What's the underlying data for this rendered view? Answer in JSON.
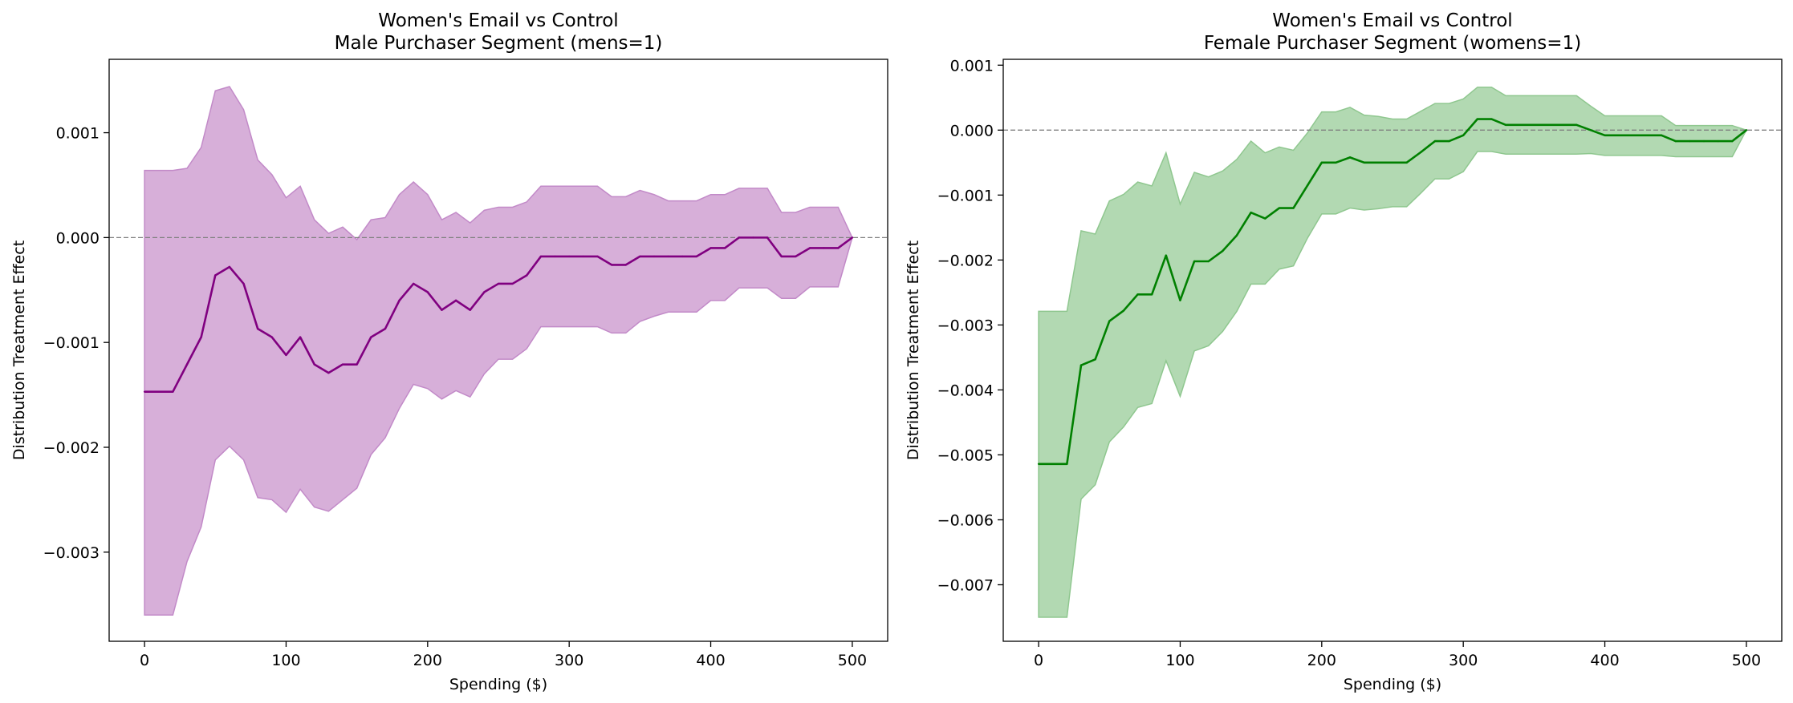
{
  "chart_data": [
    {
      "type": "line",
      "title": "Women's Email vs Control",
      "subtitle": "Male Purchaser Segment (mens=1)",
      "xlabel": "Spending ($)",
      "ylabel": "Distribution Treatment Effect",
      "xlim": [
        -25,
        525
      ],
      "ylim": [
        -0.00385,
        0.0017
      ],
      "xticks": [
        0,
        100,
        200,
        300,
        400,
        500
      ],
      "xtick_labels": [
        "0",
        "100",
        "200",
        "300",
        "400",
        "500"
      ],
      "yticks": [
        -0.003,
        -0.002,
        -0.001,
        0.0,
        0.001
      ],
      "ytick_labels": [
        "−0.003",
        "−0.002",
        "−0.001",
        "0.000",
        "0.001"
      ],
      "zero_line": true,
      "grid": false,
      "line_color": "#800080",
      "band_color": "#d7afd9",
      "band_edge_color": "#c28ac8",
      "x": [
        0,
        10,
        20,
        30,
        40,
        50,
        60,
        70,
        80,
        90,
        100,
        110,
        120,
        130,
        140,
        150,
        160,
        170,
        180,
        190,
        200,
        210,
        220,
        230,
        240,
        250,
        260,
        270,
        280,
        290,
        300,
        310,
        320,
        330,
        340,
        350,
        360,
        370,
        380,
        390,
        400,
        410,
        420,
        430,
        440,
        450,
        460,
        470,
        480,
        490,
        500
      ],
      "series": [
        {
          "values": [
            -0.00147,
            -0.00147,
            -0.00147,
            -0.00121,
            -0.00095,
            -0.00036,
            -0.00028,
            -0.00044,
            -0.00087,
            -0.00095,
            -0.00112,
            -0.00095,
            -0.00121,
            -0.00129,
            -0.00121,
            -0.00121,
            -0.00095,
            -0.00087,
            -0.0006,
            -0.00044,
            -0.00052,
            -0.00069,
            -0.0006,
            -0.00069,
            -0.00052,
            -0.00044,
            -0.00044,
            -0.00036,
            -0.00018,
            -0.00018,
            -0.00018,
            -0.00018,
            -0.00018,
            -0.00026,
            -0.00026,
            -0.00018,
            -0.00018,
            -0.00018,
            -0.00018,
            -0.00018,
            -0.0001,
            -0.0001,
            0.0,
            0.0,
            0.0,
            -0.00018,
            -0.00018,
            -0.0001,
            -0.0001,
            -0.0001,
            0.0
          ],
          "lower": [
            -0.0036,
            -0.0036,
            -0.0036,
            -0.00309,
            -0.00276,
            -0.00212,
            -0.00199,
            -0.00212,
            -0.00248,
            -0.0025,
            -0.00262,
            -0.0024,
            -0.00257,
            -0.00261,
            -0.0025,
            -0.00239,
            -0.00207,
            -0.00191,
            -0.00163,
            -0.0014,
            -0.00144,
            -0.00154,
            -0.00146,
            -0.00152,
            -0.0013,
            -0.00116,
            -0.00116,
            -0.00106,
            -0.00085,
            -0.00085,
            -0.00085,
            -0.00085,
            -0.00085,
            -0.00091,
            -0.00091,
            -0.0008,
            -0.00075,
            -0.00071,
            -0.00071,
            -0.00071,
            -0.0006,
            -0.0006,
            -0.00048,
            -0.00048,
            -0.00048,
            -0.00058,
            -0.00058,
            -0.00047,
            -0.00047,
            -0.00047,
            0.0
          ],
          "upper": [
            0.00064,
            0.00064,
            0.00064,
            0.00066,
            0.00086,
            0.0014,
            0.00144,
            0.00122,
            0.00074,
            0.0006,
            0.00038,
            0.00049,
            0.00017,
            4e-05,
            0.0001,
            -2e-05,
            0.00017,
            0.00019,
            0.00041,
            0.00053,
            0.00041,
            0.00017,
            0.00024,
            0.00014,
            0.00026,
            0.00029,
            0.00029,
            0.00034,
            0.00049,
            0.00049,
            0.00049,
            0.00049,
            0.00049,
            0.00039,
            0.00039,
            0.00045,
            0.00041,
            0.00035,
            0.00035,
            0.00035,
            0.00041,
            0.00041,
            0.00047,
            0.00047,
            0.00047,
            0.00024,
            0.00024,
            0.00029,
            0.00029,
            0.00029,
            0.0
          ]
        }
      ]
    },
    {
      "type": "line",
      "title": "Women's Email vs Control",
      "subtitle": "Female Purchaser Segment (womens=1)",
      "xlabel": "Spending ($)",
      "ylabel": "Distribution Treatment Effect",
      "xlim": [
        -25,
        525
      ],
      "ylim": [
        -0.00787,
        0.00109
      ],
      "xticks": [
        0,
        100,
        200,
        300,
        400,
        500
      ],
      "xtick_labels": [
        "0",
        "100",
        "200",
        "300",
        "400",
        "500"
      ],
      "yticks": [
        -0.007,
        -0.006,
        -0.005,
        -0.004,
        -0.003,
        -0.002,
        -0.001,
        0.0,
        0.001
      ],
      "ytick_labels": [
        "−0.007",
        "−0.006",
        "−0.005",
        "−0.004",
        "−0.003",
        "−0.002",
        "−0.001",
        "0.000",
        "0.001"
      ],
      "zero_line": true,
      "grid": false,
      "line_color": "#008000",
      "band_color": "#b2d9b2",
      "band_edge_color": "#8fc78f",
      "x": [
        0,
        10,
        20,
        30,
        40,
        50,
        60,
        70,
        80,
        90,
        100,
        110,
        120,
        130,
        140,
        150,
        160,
        170,
        180,
        190,
        200,
        210,
        220,
        230,
        240,
        250,
        260,
        270,
        280,
        290,
        300,
        310,
        320,
        330,
        340,
        350,
        360,
        370,
        380,
        390,
        400,
        410,
        420,
        430,
        440,
        450,
        460,
        470,
        480,
        490,
        500
      ],
      "series": [
        {
          "values": [
            -0.00514,
            -0.00514,
            -0.00514,
            -0.00362,
            -0.00353,
            -0.00294,
            -0.00278,
            -0.00253,
            -0.00253,
            -0.00193,
            -0.00262,
            -0.00202,
            -0.00202,
            -0.00186,
            -0.00162,
            -0.00127,
            -0.00136,
            -0.0012,
            -0.0012,
            -0.00085,
            -0.0005,
            -0.0005,
            -0.00042,
            -0.0005,
            -0.0005,
            -0.0005,
            -0.0005,
            -0.00034,
            -0.00017,
            -0.00017,
            -8e-05,
            0.00017,
            0.00017,
            8e-05,
            8e-05,
            8e-05,
            8e-05,
            8e-05,
            8e-05,
            0.0,
            -8e-05,
            -8e-05,
            -8e-05,
            -8e-05,
            -8e-05,
            -0.00017,
            -0.00017,
            -0.00017,
            -0.00017,
            -0.00017,
            0.0
          ],
          "lower": [
            -0.0075,
            -0.0075,
            -0.0075,
            -0.00568,
            -0.00546,
            -0.0048,
            -0.00457,
            -0.00427,
            -0.00421,
            -0.00355,
            -0.0041,
            -0.0034,
            -0.00332,
            -0.0031,
            -0.00279,
            -0.00237,
            -0.00237,
            -0.00214,
            -0.00209,
            -0.00166,
            -0.00129,
            -0.00129,
            -0.0012,
            -0.00123,
            -0.00121,
            -0.00118,
            -0.00118,
            -0.00097,
            -0.00075,
            -0.00075,
            -0.00064,
            -0.00033,
            -0.00033,
            -0.00037,
            -0.00037,
            -0.00037,
            -0.00037,
            -0.00037,
            -0.00037,
            -0.00036,
            -0.00039,
            -0.00039,
            -0.00039,
            -0.00039,
            -0.00039,
            -0.00041,
            -0.00041,
            -0.00041,
            -0.00041,
            -0.00041,
            0.0
          ],
          "upper": [
            -0.00279,
            -0.00279,
            -0.00279,
            -0.00155,
            -0.0016,
            -0.00109,
            -0.00099,
            -0.0008,
            -0.00086,
            -0.00035,
            -0.00114,
            -0.00065,
            -0.00072,
            -0.00063,
            -0.00045,
            -0.00017,
            -0.00035,
            -0.00026,
            -0.00031,
            -4e-05,
            0.00028,
            0.00028,
            0.00035,
            0.00023,
            0.00021,
            0.00017,
            0.00017,
            0.00029,
            0.00041,
            0.00041,
            0.00048,
            0.00066,
            0.00066,
            0.00053,
            0.00053,
            0.00053,
            0.00053,
            0.00053,
            0.00053,
            0.00037,
            0.00022,
            0.00022,
            0.00022,
            0.00022,
            0.00022,
            7e-05,
            7e-05,
            7e-05,
            7e-05,
            7e-05,
            0.0
          ]
        }
      ]
    }
  ]
}
